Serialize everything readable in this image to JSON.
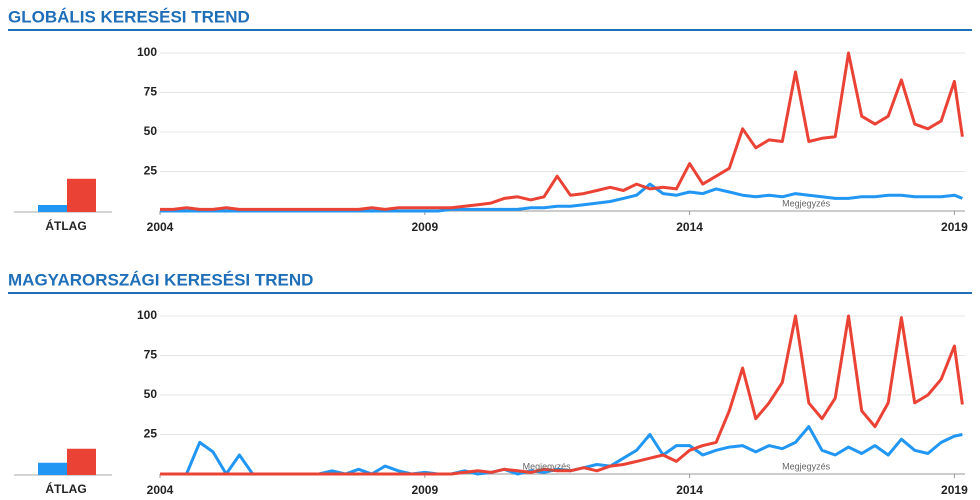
{
  "chart_data": [
    {
      "type": "line",
      "title": "GLOBÁLIS KERESÉSI TREND",
      "xlim": [
        2004,
        2019.2
      ],
      "xticks": [
        2004,
        2009,
        2014,
        2019
      ],
      "ylim": [
        0,
        100
      ],
      "yticks": [
        25,
        50,
        75,
        100
      ],
      "grid": true,
      "x": [
        2004,
        2004.25,
        2004.5,
        2004.75,
        2005,
        2005.25,
        2005.5,
        2005.75,
        2006,
        2006.25,
        2006.5,
        2006.75,
        2007,
        2007.25,
        2007.5,
        2007.75,
        2008,
        2008.25,
        2008.5,
        2008.75,
        2009,
        2009.25,
        2009.5,
        2009.75,
        2010,
        2010.25,
        2010.5,
        2010.75,
        2011,
        2011.25,
        2011.5,
        2011.75,
        2012,
        2012.25,
        2012.5,
        2012.75,
        2013,
        2013.25,
        2013.5,
        2013.75,
        2014,
        2014.25,
        2014.5,
        2014.75,
        2015,
        2015.25,
        2015.5,
        2015.75,
        2016,
        2016.25,
        2016.5,
        2016.75,
        2017,
        2017.25,
        2017.5,
        2017.75,
        2018,
        2018.25,
        2018.5,
        2018.75,
        2019,
        2019.15
      ],
      "series": [
        {
          "color": "#2196f3",
          "values": [
            0,
            0,
            0,
            0,
            0,
            0,
            0,
            0,
            0,
            0,
            0,
            0,
            0,
            0,
            0,
            0,
            0,
            0,
            0,
            0,
            0,
            0,
            1,
            1,
            1,
            1,
            1,
            1,
            2,
            2,
            3,
            3,
            4,
            5,
            6,
            8,
            10,
            17,
            11,
            10,
            12,
            11,
            14,
            12,
            10,
            9,
            10,
            9,
            11,
            10,
            9,
            8,
            8,
            9,
            9,
            10,
            10,
            9,
            9,
            9,
            10,
            8
          ]
        },
        {
          "color": "#ea4335",
          "values": [
            1,
            1,
            2,
            1,
            1,
            2,
            1,
            1,
            1,
            1,
            1,
            1,
            1,
            1,
            1,
            1,
            2,
            1,
            2,
            2,
            2,
            2,
            2,
            3,
            4,
            5,
            8,
            9,
            7,
            9,
            22,
            10,
            11,
            13,
            15,
            13,
            17,
            14,
            15,
            14,
            30,
            17,
            22,
            27,
            52,
            40,
            45,
            44,
            88,
            44,
            46,
            47,
            100,
            60,
            55,
            60,
            83,
            55,
            52,
            57,
            82,
            47
          ]
        }
      ],
      "average": {
        "label": "ÁTLAG",
        "values": [
          4,
          19
        ]
      },
      "annotations": [
        {
          "text": "Megjegyzés",
          "x": 2016.2
        }
      ]
    },
    {
      "type": "line",
      "title": "MAGYARORSZÁGI KERESÉSI TREND",
      "xlim": [
        2004,
        2019.2
      ],
      "xticks": [
        2004,
        2009,
        2014,
        2019
      ],
      "ylim": [
        0,
        100
      ],
      "yticks": [
        25,
        50,
        75,
        100
      ],
      "grid": true,
      "x": [
        2004,
        2004.25,
        2004.5,
        2004.75,
        2005,
        2005.25,
        2005.5,
        2005.75,
        2006,
        2006.25,
        2006.5,
        2006.75,
        2007,
        2007.25,
        2007.5,
        2007.75,
        2008,
        2008.25,
        2008.5,
        2008.75,
        2009,
        2009.25,
        2009.5,
        2009.75,
        2010,
        2010.25,
        2010.5,
        2010.75,
        2011,
        2011.25,
        2011.5,
        2011.75,
        2012,
        2012.25,
        2012.5,
        2012.75,
        2013,
        2013.25,
        2013.5,
        2013.75,
        2014,
        2014.25,
        2014.5,
        2014.75,
        2015,
        2015.25,
        2015.5,
        2015.75,
        2016,
        2016.25,
        2016.5,
        2016.75,
        2017,
        2017.25,
        2017.5,
        2017.75,
        2018,
        2018.25,
        2018.5,
        2018.75,
        2019,
        2019.15
      ],
      "series": [
        {
          "color": "#2196f3",
          "values": [
            0,
            0,
            0,
            20,
            14,
            0,
            12,
            0,
            0,
            0,
            0,
            0,
            0,
            2,
            0,
            3,
            0,
            5,
            2,
            0,
            1,
            0,
            0,
            2,
            0,
            1,
            3,
            0,
            2,
            1,
            3,
            2,
            4,
            6,
            5,
            10,
            15,
            25,
            12,
            18,
            18,
            12,
            15,
            17,
            18,
            14,
            18,
            16,
            20,
            30,
            15,
            12,
            17,
            13,
            18,
            12,
            22,
            15,
            13,
            20,
            24,
            25
          ]
        },
        {
          "color": "#ea4335",
          "values": [
            0,
            0,
            0,
            0,
            0,
            0,
            0,
            0,
            0,
            0,
            0,
            0,
            0,
            0,
            0,
            0,
            0,
            0,
            0,
            0,
            0,
            0,
            0,
            1,
            2,
            1,
            3,
            2,
            1,
            3,
            2,
            2,
            4,
            2,
            5,
            6,
            8,
            10,
            12,
            8,
            15,
            18,
            20,
            40,
            67,
            35,
            45,
            58,
            100,
            45,
            35,
            48,
            100,
            40,
            30,
            45,
            99,
            45,
            50,
            60,
            81,
            44
          ]
        }
      ],
      "average": {
        "label": "ÁTLAG",
        "values": [
          7,
          15
        ]
      },
      "annotations": [
        {
          "text": "Megjegyzés",
          "x": 2011.3
        },
        {
          "text": "Megjegyzés",
          "x": 2016.2
        }
      ]
    }
  ]
}
